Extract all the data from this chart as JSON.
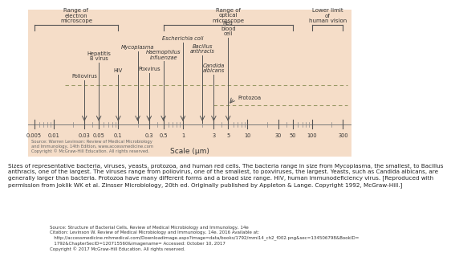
{
  "bg_color": "#f5ddc8",
  "fig_bg": "#ffffff",
  "xlabel": "Scale (μm)",
  "x_ticks": [
    0.005,
    0.01,
    0.03,
    0.05,
    0.1,
    0.3,
    0.5,
    1,
    3,
    5,
    10,
    30,
    50,
    100,
    300
  ],
  "x_tick_labels": [
    "0.005",
    "0.01",
    "0.03",
    "0.05",
    "0.1",
    "0.3",
    "0.5",
    "1",
    "3",
    "5",
    "10",
    "30",
    "50",
    "100",
    "300"
  ],
  "source_text": "Source: Warren Levinson: Review of Medical Microbiology\nand Immunology, 14th Edition, www.accessmedicine.com\nCopyright © McGraw-Hill Education. All rights reserved.",
  "caption_text": "Sizes of representative bacteria, viruses, yeasts, protozoa, and human red cells. The bacteria range in size from Mycoplasma, the smallest, to Bacillus\nanthracis, one of the largest. The viruses range from poliovirus, one of the smallest, to poxviruses, the largest. Yeasts, such as Candida albicans, are\ngenerally larger than bacteria. Protozoa have many different forms and a broad size range. HIV, human immunodeficiency virus. [Reproduced with\npermission from Joklik WK et al. Zinsser Microbiology, 20th ed. Originally published by Appleton & Lange. Copyright 1992, McGraw-Hill.]",
  "mcgraw_source": "Source: Structure of Bacterial Cells, Review of Medical Microbiology and Immunology, 14e",
  "mcgraw_citation": "Citation: Levinson W. Review of Medical Microbiology and Immunology, 14e. 2016 Available at:",
  "mcgraw_url": "   http://accessmedicine.mhmedical.com/Downloadimage.aspx?image=data/books/1792/mmi14_ch2_f002.png&sec=134506798&BookID=",
  "mcgraw_url2": "   1792&ChapterSecID=120715560&imagename= Accessed: October 10, 2017",
  "mcgraw_copy": "Copyright © 2017 McGraw-Hill Education. All rights reserved."
}
